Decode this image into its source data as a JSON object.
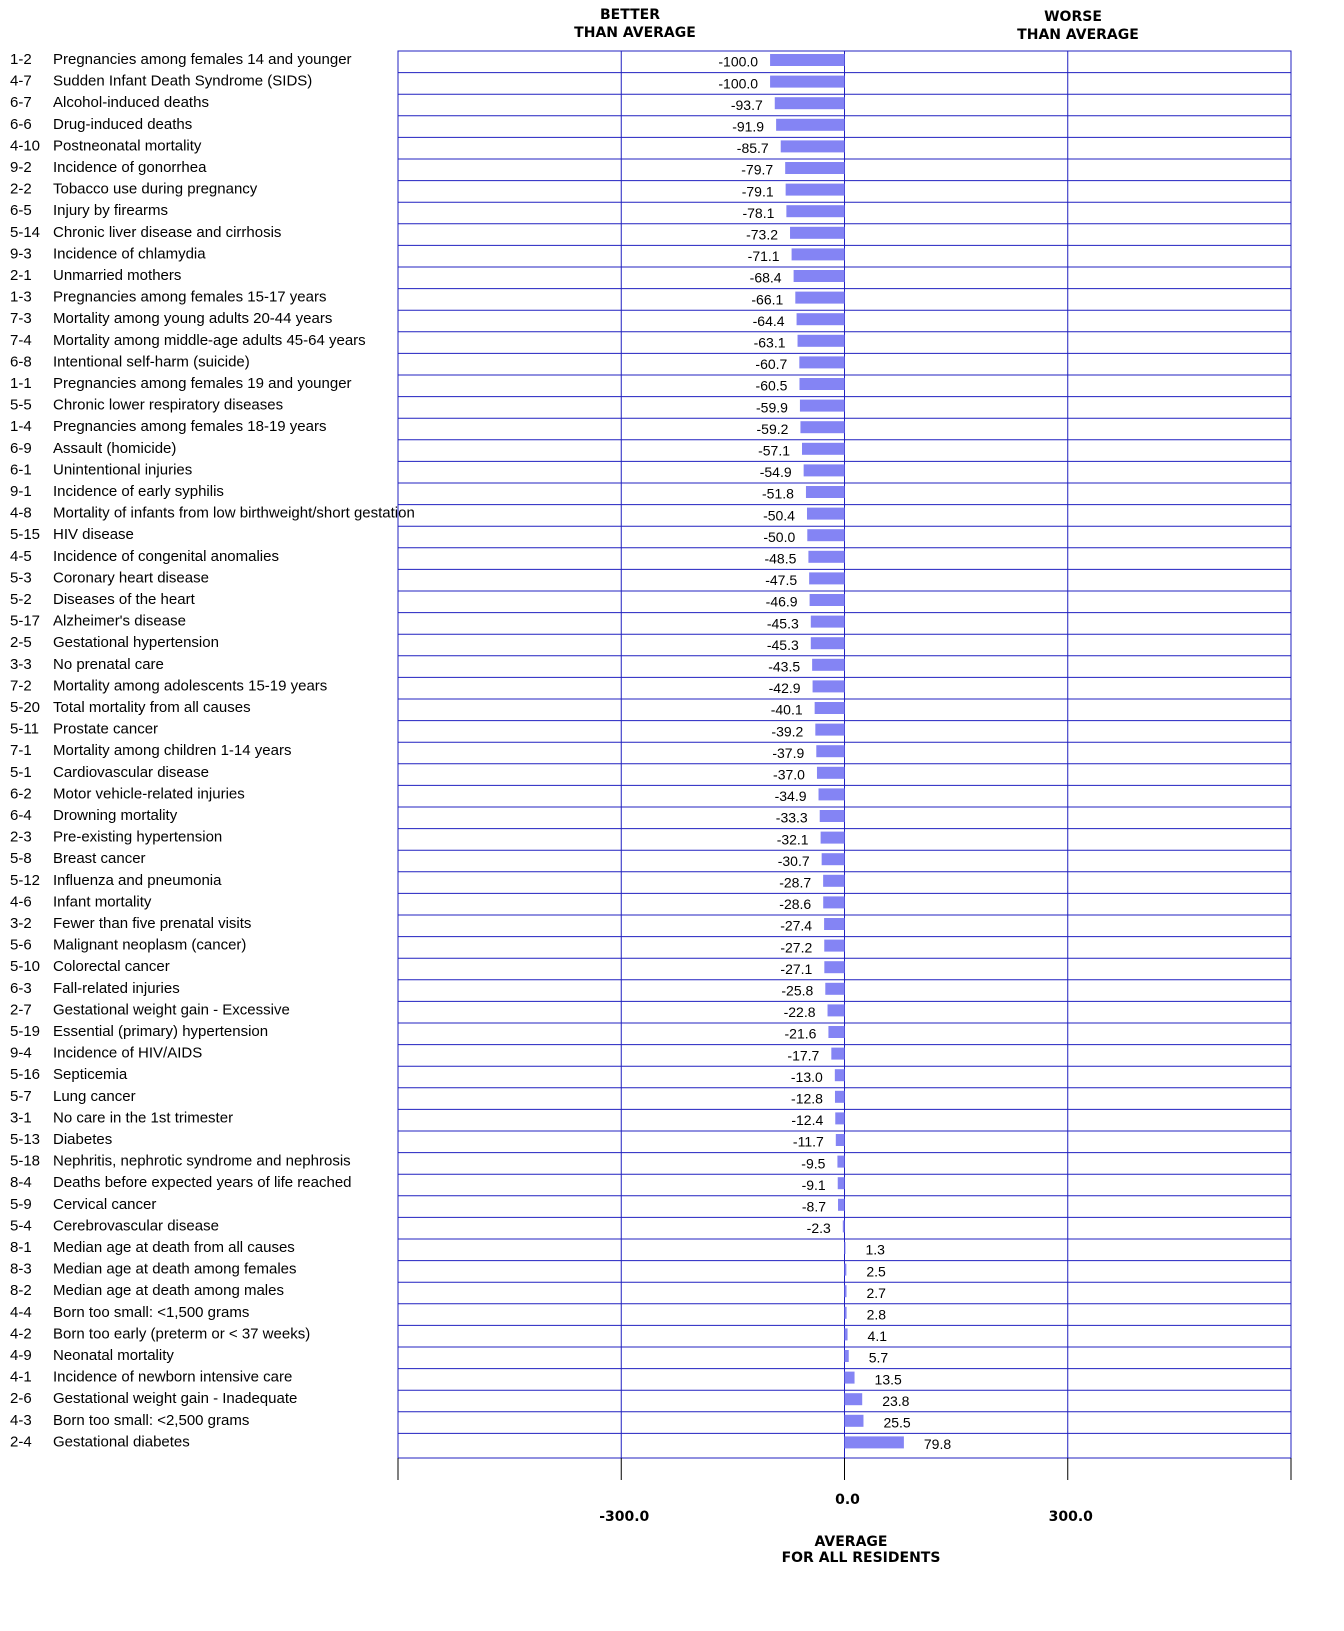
{
  "chart_data": {
    "type": "bar",
    "orientation": "horizontal",
    "header_left": [
      "BETTER",
      "THAN AVERAGE"
    ],
    "header_right": [
      "WORSE",
      "THAN AVERAGE"
    ],
    "x_label": [
      "AVERAGE",
      "FOR ALL RESIDENTS"
    ],
    "codes": [
      "1-2",
      "4-7",
      "6-7",
      "6-6",
      "4-10",
      "9-2",
      "2-2",
      "6-5",
      "5-14",
      "9-3",
      "2-1",
      "1-3",
      "7-3",
      "7-4",
      "6-8",
      "1-1",
      "5-5",
      "1-4",
      "6-9",
      "6-1",
      "9-1",
      "4-8",
      "5-15",
      "4-5",
      "5-3",
      "5-2",
      "5-17",
      "2-5",
      "3-3",
      "7-2",
      "5-20",
      "5-11",
      "7-1",
      "5-1",
      "6-2",
      "6-4",
      "2-3",
      "5-8",
      "5-12",
      "4-6",
      "3-2",
      "5-6",
      "5-10",
      "6-3",
      "2-7",
      "5-19",
      "9-4",
      "5-16",
      "5-7",
      "3-1",
      "5-13",
      "5-18",
      "8-4",
      "5-9",
      "5-4",
      "8-1",
      "8-3",
      "8-2",
      "4-4",
      "4-2",
      "4-9",
      "4-1",
      "2-6",
      "4-3",
      "2-4"
    ],
    "categories": [
      "Pregnancies among females 14 and younger",
      "Sudden Infant Death Syndrome (SIDS)",
      "Alcohol-induced deaths",
      "Drug-induced deaths",
      "Postneonatal mortality",
      "Incidence of gonorrhea",
      "Tobacco use during pregnancy",
      "Injury by firearms",
      "Chronic liver disease and cirrhosis",
      "Incidence of chlamydia",
      "Unmarried mothers",
      "Pregnancies among females 15-17 years",
      "Mortality among young adults 20-44 years",
      "Mortality among middle-age adults 45-64 years",
      "Intentional self-harm (suicide)",
      "Pregnancies among females 19 and younger",
      "Chronic lower respiratory diseases",
      "Pregnancies among females 18-19 years",
      "Assault (homicide)",
      "Unintentional injuries",
      "Incidence of early syphilis",
      "Mortality of infants from low birthweight/short gestation",
      "HIV disease",
      "Incidence of congenital anomalies",
      "Coronary heart disease",
      "Diseases of the heart",
      "Alzheimer's disease",
      "Gestational hypertension",
      "No prenatal care",
      "Mortality among adolescents 15-19 years",
      "Total mortality from all causes",
      "Prostate cancer",
      "Mortality among children 1-14 years",
      "Cardiovascular disease",
      "Motor vehicle-related injuries",
      "Drowning mortality",
      "Pre-existing hypertension",
      "Breast cancer",
      "Influenza and pneumonia",
      "Infant mortality",
      "Fewer than five prenatal visits",
      "Malignant neoplasm (cancer)",
      "Colorectal cancer",
      "Fall-related injuries",
      "Gestational weight gain - Excessive",
      "Essential (primary) hypertension",
      "Incidence of HIV/AIDS",
      "Septicemia",
      "Lung cancer",
      "No care in the 1st trimester",
      "Diabetes",
      "Nephritis, nephrotic syndrome and nephrosis",
      "Deaths before expected years of life reached",
      "Cervical cancer",
      "Cerebrovascular disease",
      "Median age at death from all causes",
      "Median age at death among females",
      "Median age at death among males",
      "Born too small: <1,500 grams",
      "Born too early (preterm or < 37 weeks)",
      "Neonatal mortality",
      "Incidence of newborn intensive care",
      "Gestational weight gain - Inadequate",
      "Born too small: <2,500 grams",
      "Gestational diabetes"
    ],
    "values": [
      -100.0,
      -100.0,
      -93.7,
      -91.9,
      -85.7,
      -79.7,
      -79.1,
      -78.1,
      -73.2,
      -71.1,
      -68.4,
      -66.1,
      -64.4,
      -63.1,
      -60.7,
      -60.5,
      -59.9,
      -59.2,
      -57.1,
      -54.9,
      -51.8,
      -50.4,
      -50.0,
      -48.5,
      -47.5,
      -46.9,
      -45.3,
      -45.3,
      -43.5,
      -42.9,
      -40.1,
      -39.2,
      -37.9,
      -37.0,
      -34.9,
      -33.3,
      -32.1,
      -30.7,
      -28.7,
      -28.6,
      -27.4,
      -27.2,
      -27.1,
      -25.8,
      -22.8,
      -21.6,
      -17.7,
      -13.0,
      -12.8,
      -12.4,
      -11.7,
      -9.5,
      -9.1,
      -8.7,
      -2.3,
      1.3,
      2.5,
      2.7,
      2.8,
      4.1,
      5.7,
      13.5,
      23.8,
      25.5,
      79.8
    ],
    "value_labels": [
      "-100.0",
      "-100.0",
      "-93.7",
      "-91.9",
      "-85.7",
      "-79.7",
      "-79.1",
      "-78.1",
      "-73.2",
      "-71.1",
      "-68.4",
      "-66.1",
      "-64.4",
      "-63.1",
      "-60.7",
      "-60.5",
      "-59.9",
      "-59.2",
      "-57.1",
      "-54.9",
      "-51.8",
      "-50.4",
      "-50.0",
      "-48.5",
      "-47.5",
      "-46.9",
      "-45.3",
      "-45.3",
      "-43.5",
      "-42.9",
      "-40.1",
      "-39.2",
      "-37.9",
      "-37.0",
      "-34.9",
      "-33.3",
      "-32.1",
      "-30.7",
      "-28.7",
      "-28.6",
      "-27.4",
      "-27.2",
      "-27.1",
      "-25.8",
      "-22.8",
      "-21.6",
      "-17.7",
      "-13.0",
      "-12.8",
      "-12.4",
      "-11.7",
      "-9.5",
      "-9.1",
      "-8.7",
      "-2.3",
      "1.3",
      "2.5",
      "2.7",
      "2.8",
      "4.1",
      "5.7",
      "13.5",
      "23.8",
      "25.5",
      "79.8"
    ],
    "color": "#8484f4",
    "xlim": [
      -600,
      600
    ],
    "xticks": [
      {
        "value": -300,
        "label": "-300.0"
      },
      {
        "value": 0,
        "label": "0.0"
      },
      {
        "value": 300,
        "label": "300.0"
      }
    ],
    "grid": true
  }
}
